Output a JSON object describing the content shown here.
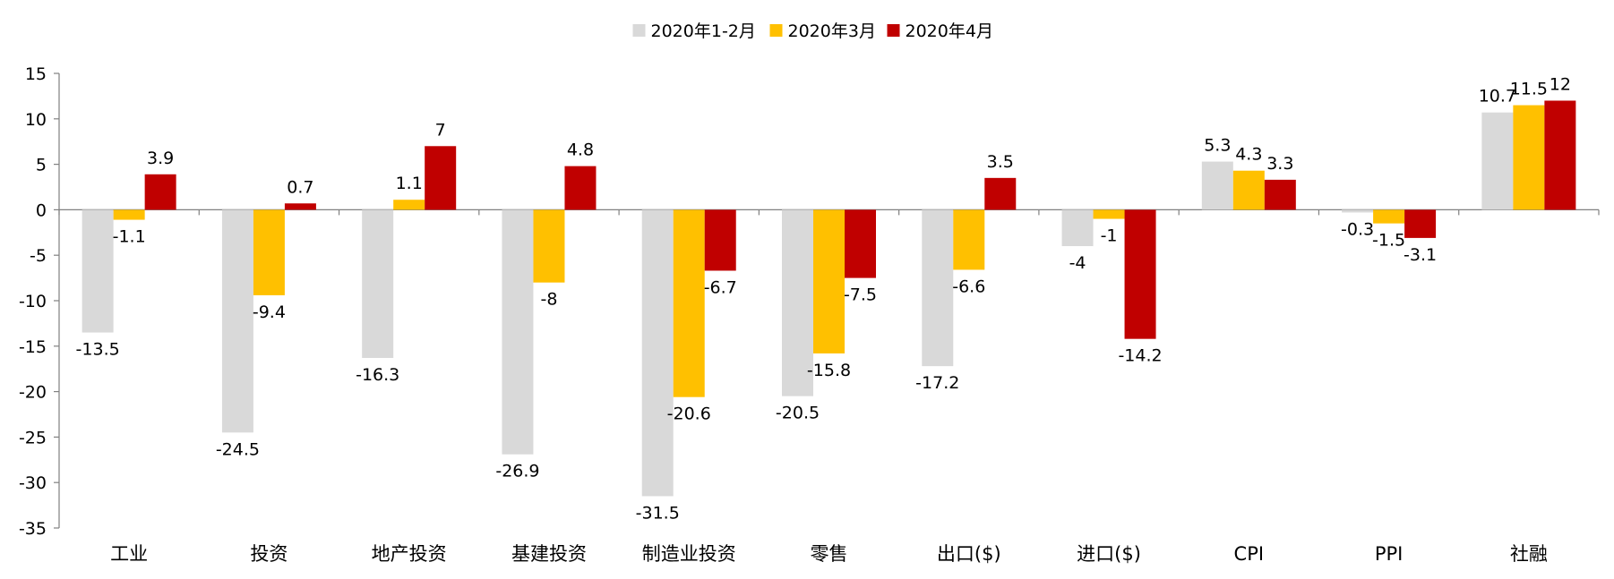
{
  "chart_data": {
    "type": "bar",
    "title": "",
    "xlabel": "",
    "ylabel": "",
    "ylim": [
      -35,
      15
    ],
    "yticks": [
      15,
      10,
      5,
      0,
      -5,
      -10,
      -15,
      -20,
      -25,
      -30,
      -35
    ],
    "grid": false,
    "legend_position": "top-center",
    "categories": [
      "工业",
      "投资",
      "地产投资",
      "基建投资",
      "制造业投资",
      "零售",
      "出口($)",
      "进口($)",
      "CPI",
      "PPI",
      "社融"
    ],
    "series": [
      {
        "name": "2020年1-2月",
        "color": "#d9d9d9",
        "values": [
          -13.5,
          -24.5,
          -16.3,
          -26.9,
          -31.5,
          -20.5,
          -17.2,
          -4,
          5.3,
          -0.3,
          10.7
        ],
        "labels": [
          "-13.5",
          "-24.5",
          "-16.3",
          "-26.9",
          "-31.5",
          "-20.5",
          "-17.2",
          "-4",
          "5.3",
          "-0.3",
          "10.7"
        ]
      },
      {
        "name": "2020年3月",
        "color": "#ffc000",
        "values": [
          -1.1,
          -9.4,
          1.1,
          -8,
          -20.6,
          -15.8,
          -6.6,
          -1,
          4.3,
          -1.5,
          11.5
        ],
        "labels": [
          "-1.1",
          "-9.4",
          "1.1",
          "-8",
          "-20.6",
          "-15.8",
          "-6.6",
          "-1",
          "4.3",
          "-1.5",
          "11.5"
        ]
      },
      {
        "name": "2020年4月",
        "color": "#c00000",
        "values": [
          3.9,
          0.7,
          7,
          4.8,
          -6.7,
          -7.5,
          3.5,
          -14.2,
          3.3,
          -3.1,
          12
        ],
        "labels": [
          "3.9",
          "0.7",
          "7",
          "4.8",
          "-6.7",
          "-7.5",
          "3.5",
          "-14.2",
          "3.3",
          "-3.1",
          "12"
        ]
      }
    ]
  }
}
